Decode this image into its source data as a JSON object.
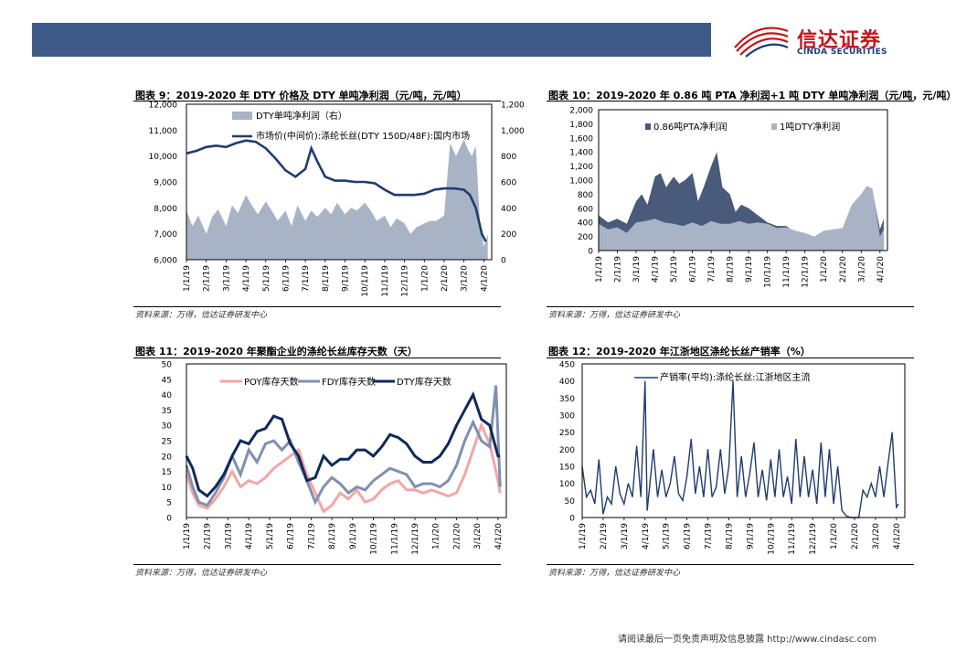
{
  "header": {
    "logo_cn": "信达证券",
    "logo_en": "CINDA SECURITIES",
    "brand_color": "#3d5a88",
    "logo_red": "#c4161c"
  },
  "footer": {
    "text": "请阅读最后一页免责声明及信息披露 http://www.cindasc.com"
  },
  "charts": [
    {
      "title": "图表 9：2019-2020 年 DTY 价格及 DTY 单吨净利润（元/吨，元/吨）",
      "source": "资料来源：万得，信达证券研发中心"
    },
    {
      "title": "图表 10：2019-2020 年 0.86 吨 PTA 净利润+1 吨 DTY 单吨净利润（元/吨，元/吨）",
      "source": "资料来源：万得，信达证券研发中心"
    },
    {
      "title": "图表 11：2019-2020 年聚酯企业的涤纶长丝库存天数（天）",
      "source": "资料来源：万得，信达证券研发中心"
    },
    {
      "title": "图表 12：2019-2020 年江浙地区涤纶长丝产销率（%）",
      "source": "资料来源：万得，信达证券研发中心"
    }
  ],
  "chart_data": [
    {
      "type": "area+line",
      "title": "图表 9：2019-2020 年 DTY 价格及 DTY 单吨净利润（元/吨，元/吨）",
      "categories": [
        "1/1/19",
        "2/1/19",
        "3/1/19",
        "4/1/19",
        "5/1/19",
        "6/1/19",
        "7/1/19",
        "8/1/19",
        "9/1/19",
        "10/1/19",
        "11/1/19",
        "12/1/19",
        "1/1/20",
        "2/1/20",
        "3/1/20",
        "4/1/20"
      ],
      "ylim_left": [
        6000,
        12000
      ],
      "yticks_left": [
        "12,000",
        "11,000",
        "10,000",
        "9,000",
        "8,000",
        "7,000",
        "6,000"
      ],
      "ylim_right": [
        0,
        1200
      ],
      "yticks_right": [
        "1,200",
        "1,000",
        "800",
        "600",
        "400",
        "200",
        "0"
      ],
      "series": [
        {
          "name": "DTY单吨净利润（右）",
          "axis": "right",
          "kind": "area",
          "color": "#a8b4c6",
          "x": [
            0,
            0.3,
            0.6,
            1,
            1.3,
            1.6,
            2,
            2.3,
            2.6,
            3,
            3.3,
            3.6,
            4,
            4.3,
            4.6,
            5,
            5.3,
            5.6,
            6,
            6.3,
            6.6,
            7,
            7.3,
            7.6,
            8,
            8.3,
            8.6,
            9,
            9.3,
            9.6,
            10,
            10.3,
            10.6,
            11,
            11.3,
            11.6,
            12,
            12.3,
            12.6,
            13,
            13.3,
            13.6,
            14,
            14.2,
            14.4,
            14.6,
            14.8,
            15,
            15.2
          ],
          "values": [
            380,
            260,
            340,
            200,
            330,
            390,
            260,
            420,
            360,
            500,
            420,
            350,
            450,
            380,
            300,
            380,
            260,
            420,
            300,
            380,
            330,
            400,
            350,
            440,
            350,
            400,
            380,
            440,
            380,
            300,
            340,
            250,
            320,
            280,
            200,
            250,
            280,
            300,
            300,
            340,
            900,
            800,
            930,
            850,
            800,
            880,
            300,
            100,
            200
          ]
        },
        {
          "name": "市场价(中间价):涤纶长丝(DTY 150D/48F):国内市场",
          "axis": "left",
          "kind": "line",
          "color": "#1f3d6e",
          "x": [
            0,
            0.5,
            1,
            1.5,
            2,
            2.5,
            3,
            3.5,
            4,
            4.5,
            5,
            5.5,
            6,
            6.3,
            6.6,
            7,
            7.5,
            8,
            8.5,
            9,
            9.5,
            10,
            10.5,
            11,
            11.5,
            12,
            12.5,
            13,
            13.5,
            14,
            14.3,
            14.6,
            14.9,
            15.1
          ],
          "values": [
            10100,
            10200,
            10350,
            10400,
            10350,
            10500,
            10600,
            10550,
            10300,
            9900,
            9450,
            9200,
            9500,
            10300,
            9800,
            9200,
            9050,
            9050,
            9000,
            9000,
            8950,
            8700,
            8500,
            8500,
            8500,
            8550,
            8700,
            8750,
            8750,
            8700,
            8500,
            8000,
            7000,
            6700
          ]
        }
      ]
    },
    {
      "type": "area",
      "title": "图表 10：2019-2020 年 0.86 吨 PTA 净利润+1 吨 DTY 单吨净利润（元/吨，元/吨）",
      "categories": [
        "1/1/19",
        "2/1/19",
        "3/1/19",
        "4/1/19",
        "5/1/19",
        "6/1/19",
        "7/1/19",
        "8/1/19",
        "9/1/19",
        "10/1/19",
        "11/1/19",
        "12/1/19",
        "1/1/20",
        "2/1/20",
        "3/1/20",
        "4/1/20"
      ],
      "ylim": [
        0,
        2000
      ],
      "yticks": [
        "2,000",
        "1,800",
        "1,600",
        "1,400",
        "1,200",
        "1,000",
        "800",
        "600",
        "400",
        "200",
        "0"
      ],
      "series": [
        {
          "name": "0.86吨PTA净利润",
          "color": "#4a5a7a",
          "x": [
            0,
            0.5,
            1,
            1.5,
            2,
            2.3,
            2.6,
            3,
            3.3,
            3.6,
            4,
            4.3,
            4.6,
            5,
            5.3,
            5.6,
            6,
            6.3,
            6.6,
            7,
            7.3,
            7.6,
            8,
            8.5,
            9,
            9.5,
            10,
            10.5,
            11,
            11.5,
            12,
            12.5,
            13,
            13.5,
            14,
            14.3,
            14.6,
            15,
            15.2
          ],
          "values": [
            500,
            400,
            450,
            380,
            700,
            800,
            650,
            1050,
            1100,
            900,
            1050,
            950,
            1000,
            1100,
            700,
            900,
            1200,
            1400,
            900,
            800,
            550,
            650,
            600,
            500,
            400,
            350,
            350,
            250,
            200,
            100,
            150,
            150,
            300,
            400,
            800,
            900,
            850,
            300,
            450
          ]
        },
        {
          "name": "1吨DTY净利润",
          "color": "#a8b4c6",
          "x": [
            0,
            0.5,
            1,
            1.5,
            2,
            2.5,
            3,
            3.5,
            4,
            4.5,
            5,
            5.5,
            6,
            6.5,
            7,
            7.5,
            8,
            8.5,
            9,
            9.5,
            10,
            10.5,
            11,
            11.5,
            12,
            12.5,
            13,
            13.5,
            14,
            14.3,
            14.6,
            15,
            15.2
          ],
          "values": [
            380,
            300,
            330,
            250,
            400,
            420,
            450,
            400,
            380,
            350,
            400,
            350,
            420,
            380,
            380,
            420,
            380,
            400,
            380,
            320,
            330,
            280,
            250,
            200,
            280,
            300,
            320,
            650,
            800,
            920,
            880,
            200,
            300
          ]
        }
      ]
    },
    {
      "type": "line",
      "title": "图表 11：2019-2020 年聚酯企业的涤纶长丝库存天数（天）",
      "categories": [
        "1/1/19",
        "2/1/19",
        "3/1/19",
        "4/1/19",
        "5/1/19",
        "6/1/19",
        "7/1/19",
        "8/1/19",
        "9/1/19",
        "10/1/19",
        "11/1/19",
        "12/1/19",
        "1/1/20",
        "2/1/20",
        "3/1/20",
        "4/1/20"
      ],
      "ylim": [
        0,
        50
      ],
      "yticks": [
        "50",
        "45",
        "40",
        "35",
        "30",
        "25",
        "20",
        "15",
        "10",
        "5",
        "0"
      ],
      "series": [
        {
          "name": "POY库存天数",
          "color": "#f4a6a6",
          "x": [
            0,
            0.3,
            0.6,
            1,
            1.4,
            1.8,
            2.2,
            2.6,
            3,
            3.4,
            3.8,
            4.2,
            4.6,
            5,
            5.4,
            5.8,
            6.2,
            6.6,
            7,
            7.4,
            7.8,
            8.2,
            8.6,
            9,
            9.4,
            9.8,
            10.2,
            10.6,
            11,
            11.4,
            11.8,
            12.2,
            12.6,
            13,
            13.4,
            13.8,
            14.2,
            14.6,
            15,
            15.1
          ],
          "values": [
            14,
            8,
            4,
            3,
            6,
            10,
            15,
            10,
            12,
            11,
            13,
            16,
            18,
            20,
            22,
            14,
            8,
            2,
            4,
            8,
            6,
            9,
            5,
            6,
            9,
            11,
            12,
            9,
            9,
            8,
            9,
            8,
            7,
            8,
            14,
            22,
            30,
            24,
            12,
            8
          ]
        },
        {
          "name": "FDY库存天数",
          "color": "#8090b0",
          "x": [
            0,
            0.3,
            0.6,
            1,
            1.4,
            1.8,
            2.2,
            2.6,
            3,
            3.4,
            3.8,
            4.2,
            4.6,
            5,
            5.4,
            5.8,
            6.2,
            6.6,
            7,
            7.4,
            7.8,
            8.2,
            8.6,
            9,
            9.4,
            9.8,
            10.2,
            10.6,
            11,
            11.4,
            11.8,
            12.2,
            12.6,
            13,
            13.4,
            13.8,
            14.2,
            14.6,
            14.9,
            15.1
          ],
          "values": [
            17,
            10,
            5,
            4,
            8,
            13,
            20,
            14,
            22,
            18,
            24,
            25,
            22,
            25,
            18,
            12,
            5,
            10,
            13,
            11,
            8,
            10,
            9,
            12,
            14,
            16,
            15,
            14,
            10,
            11,
            11,
            10,
            12,
            17,
            25,
            31,
            25,
            23,
            43,
            10
          ]
        },
        {
          "name": "DTY库存天数",
          "color": "#0f2a5a",
          "x": [
            0,
            0.3,
            0.6,
            1,
            1.4,
            1.8,
            2.2,
            2.6,
            3,
            3.4,
            3.8,
            4.2,
            4.6,
            5,
            5.4,
            5.8,
            6.2,
            6.6,
            7,
            7.4,
            7.8,
            8.2,
            8.6,
            9,
            9.4,
            9.8,
            10.2,
            10.6,
            11,
            11.4,
            11.8,
            12.2,
            12.6,
            13,
            13.4,
            13.8,
            14.2,
            14.6,
            15,
            15.1
          ],
          "values": [
            20,
            16,
            9,
            7,
            10,
            14,
            20,
            25,
            24,
            28,
            29,
            33,
            32,
            24,
            20,
            12,
            13,
            20,
            17,
            19,
            19,
            22,
            22,
            20,
            23,
            27,
            26,
            24,
            20,
            18,
            18,
            20,
            24,
            30,
            35,
            40,
            32,
            30,
            20,
            20
          ]
        }
      ]
    },
    {
      "type": "line",
      "title": "图表 12：2019-2020 年江浙地区涤纶长丝产销率（%）",
      "categories": [
        "1/1/19",
        "2/1/19",
        "3/1/19",
        "4/1/19",
        "5/1/19",
        "6/1/19",
        "7/1/19",
        "8/1/19",
        "9/1/19",
        "10/1/19",
        "11/1/19",
        "12/1/19",
        "1/1/20",
        "2/1/20",
        "3/1/20",
        "4/1/20"
      ],
      "ylim": [
        0,
        450
      ],
      "yticks": [
        "450",
        "400",
        "350",
        "300",
        "250",
        "200",
        "150",
        "100",
        "50",
        "0"
      ],
      "series": [
        {
          "name": "产销率(平均):涤纶长丝:江浙地区主流",
          "color": "#1f3d6e",
          "x": [
            0,
            0.2,
            0.4,
            0.6,
            0.8,
            1,
            1.2,
            1.4,
            1.6,
            1.8,
            2,
            2.2,
            2.4,
            2.6,
            2.8,
            3,
            3.1,
            3.2,
            3.4,
            3.6,
            3.8,
            4,
            4.2,
            4.4,
            4.6,
            4.8,
            5,
            5.2,
            5.4,
            5.6,
            5.8,
            6,
            6.2,
            6.4,
            6.6,
            6.8,
            7,
            7.2,
            7.4,
            7.6,
            7.8,
            8,
            8.2,
            8.4,
            8.6,
            8.8,
            9,
            9.2,
            9.4,
            9.6,
            9.8,
            10,
            10.2,
            10.4,
            10.6,
            10.8,
            11,
            11.2,
            11.4,
            11.6,
            11.8,
            12,
            12.2,
            12.4,
            12.6,
            12.8,
            13,
            13.2,
            13.4,
            13.6,
            13.8,
            14,
            14.2,
            14.4,
            14.6,
            14.8,
            15,
            15.1
          ],
          "values": [
            150,
            60,
            80,
            40,
            170,
            10,
            60,
            40,
            150,
            70,
            40,
            100,
            60,
            210,
            60,
            400,
            20,
            80,
            200,
            60,
            140,
            60,
            100,
            180,
            70,
            50,
            120,
            230,
            70,
            150,
            60,
            200,
            60,
            90,
            200,
            70,
            150,
            400,
            60,
            180,
            60,
            130,
            220,
            60,
            140,
            50,
            170,
            60,
            200,
            60,
            120,
            40,
            230,
            60,
            180,
            60,
            140,
            40,
            220,
            60,
            200,
            40,
            150,
            20,
            5,
            0,
            0,
            0,
            80,
            60,
            100,
            60,
            150,
            60,
            160,
            250,
            30,
            40
          ]
        }
      ]
    }
  ]
}
